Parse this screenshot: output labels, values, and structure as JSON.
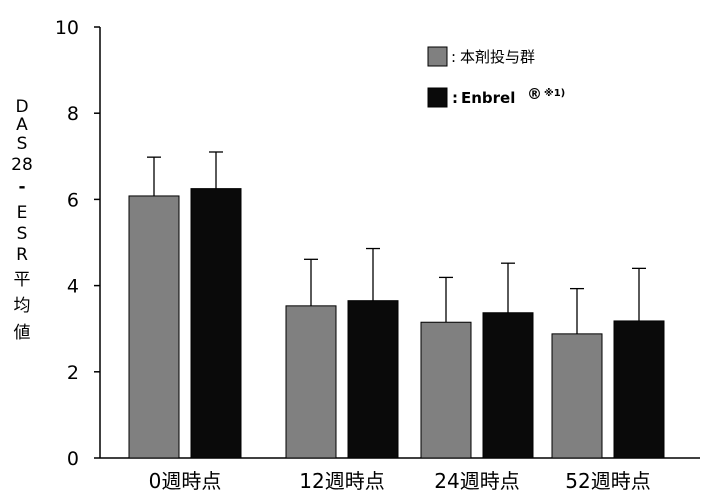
{
  "chart_data": {
    "type": "bar",
    "title": "",
    "ylabel": "DAS28-ESR平均値",
    "xlabel": "",
    "ylim": [
      0,
      10
    ],
    "yticks": [
      0,
      2,
      4,
      6,
      8,
      10
    ],
    "categories": [
      "0週時点",
      "12週時点",
      "24週時点",
      "52週時点"
    ],
    "series": [
      {
        "name": "本剤投与群",
        "color": "#808080",
        "values": [
          6.08,
          3.53,
          3.15,
          2.88
        ],
        "errors": [
          0.9,
          1.08,
          1.04,
          1.05
        ]
      },
      {
        "name": "Enbrel® ※1)",
        "color": "#0a0a0a",
        "values": [
          6.25,
          3.65,
          3.37,
          3.18
        ],
        "errors": [
          0.85,
          1.21,
          1.15,
          1.22
        ]
      }
    ],
    "legend": {
      "placement": "top-right",
      "entries": [
        {
          "prefix": ":",
          "text": "本剤投与群",
          "sup": ""
        },
        {
          "prefix": ":",
          "text": "Enbrel",
          "mark": "®",
          "sup": "※1)"
        }
      ]
    },
    "grid": false,
    "error_bars": "upper"
  }
}
